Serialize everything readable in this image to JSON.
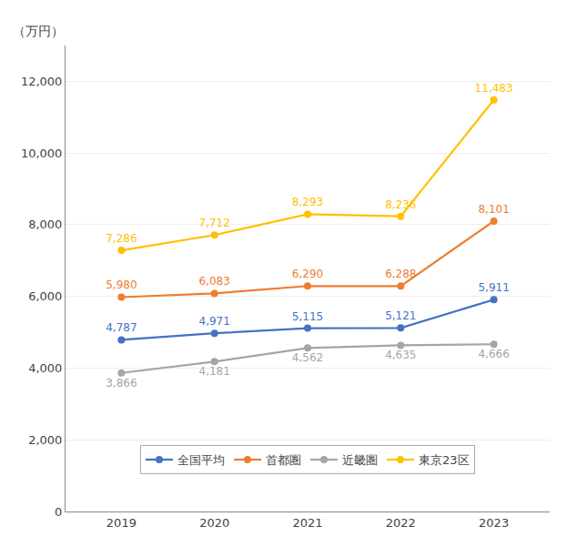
{
  "chart_data": {
    "type": "line",
    "ylabel": "（万円）",
    "x": [
      2019,
      2020,
      2021,
      2022,
      2023
    ],
    "series": [
      {
        "name": "全国平均",
        "color": "#4472C4",
        "values": [
          4787,
          4971,
          5115,
          5121,
          5911
        ],
        "value_labels": [
          "4,787",
          "4,971",
          "5,115",
          "5,121",
          "5,911"
        ]
      },
      {
        "name": "首都圏",
        "color": "#ED7D31",
        "values": [
          5980,
          6083,
          6290,
          6288,
          8101
        ],
        "value_labels": [
          "5,980",
          "6,083",
          "6,290",
          "6,288",
          "8,101"
        ]
      },
      {
        "name": "近畿圏",
        "color": "#A5A5A5",
        "values": [
          3866,
          4181,
          4562,
          4635,
          4666
        ],
        "value_labels": [
          "3,866",
          "4,181",
          "4,562",
          "4,635",
          "4,666"
        ]
      },
      {
        "name": "東京23区",
        "color": "#FFC000",
        "values": [
          7286,
          7712,
          8293,
          8236,
          11483
        ],
        "value_labels": [
          "7,286",
          "7,712",
          "8,293",
          "8,236",
          "11,483"
        ]
      }
    ],
    "xlim": [
      2018.4,
      2023.6
    ],
    "xticks": [
      2019,
      2020,
      2021,
      2022,
      2023
    ],
    "ylim": [
      0,
      13000
    ],
    "yticks": [
      0,
      {
        "value": 2000,
        "label": "2,000"
      },
      {
        "value": 4000,
        "label": "4,000"
      },
      {
        "value": 6000,
        "label": "6,000"
      },
      {
        "value": 8000,
        "label": "8,000"
      },
      {
        "value": 10000,
        "label": "10,000"
      },
      {
        "value": 12000,
        "label": "12,000"
      }
    ],
    "grid": true,
    "legend": "bottom",
    "marker": "circle",
    "line_style": "solid",
    "data_labels": true
  }
}
